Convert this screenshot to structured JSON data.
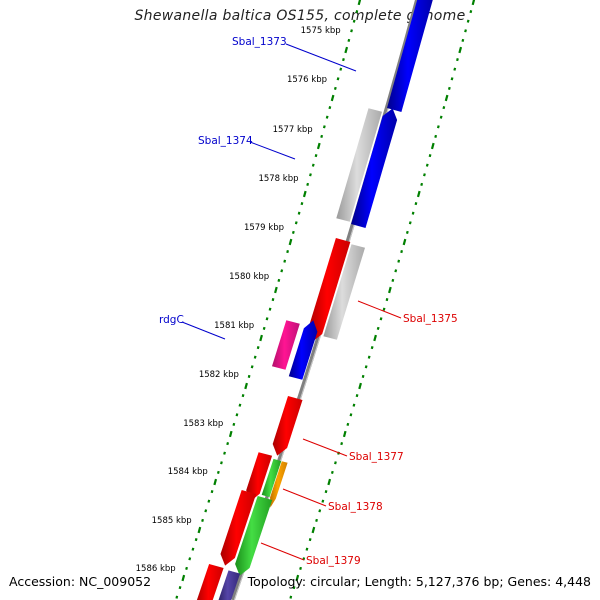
{
  "title": "Shewanella baltica OS155, complete genome",
  "accession_text": "Accession: NC_009052",
  "topology_text": "Topology: circular; Length: 5,127,376 bp; Genes: 4,448",
  "colors": {
    "backbone": "#808080",
    "tick": "#008000",
    "label_blue": "#0000cc",
    "label_red": "#dd0000",
    "gene_red": "#ff0000",
    "gene_blue": "#0000ff",
    "gene_gray": "#c8c8c8",
    "gene_magenta": "#ff1493",
    "gene_green": "#32cd32",
    "gene_orange": "#ff9900",
    "gene_purple": "#4b3b9b"
  },
  "kbp_ticks": [
    "1575 kbp",
    "1576 kbp",
    "1577 kbp",
    "1578 kbp",
    "1579 kbp",
    "1580 kbp",
    "1581 kbp",
    "1582 kbp",
    "1583 kbp",
    "1584 kbp",
    "1585 kbp",
    "1586 kbp"
  ],
  "gene_labels": [
    {
      "text": "Sbal_1373",
      "color": "blue"
    },
    {
      "text": "Sbal_1374",
      "color": "blue"
    },
    {
      "text": "rdgC",
      "color": "blue"
    },
    {
      "text": "Sbal_1375",
      "color": "red"
    },
    {
      "text": "Sbal_1377",
      "color": "red"
    },
    {
      "text": "Sbal_1378",
      "color": "red"
    },
    {
      "text": "Sbal_1379",
      "color": "red"
    }
  ]
}
